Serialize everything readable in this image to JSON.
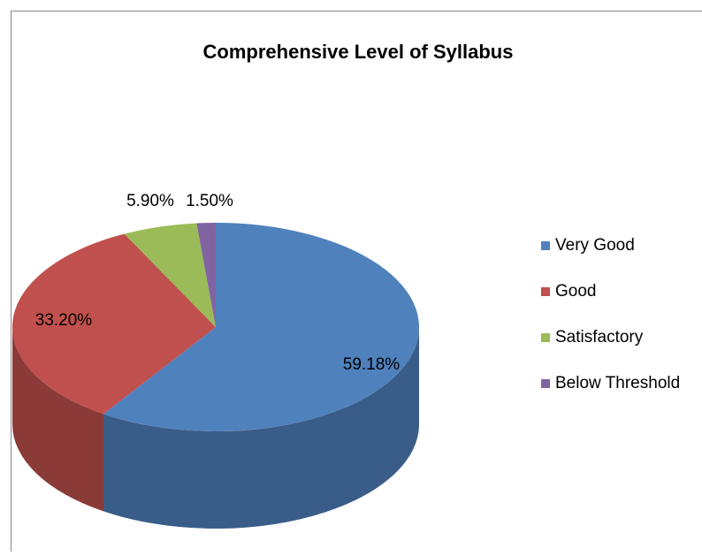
{
  "chart_data": {
    "type": "pie",
    "title": "Comprehensive Level of Syllabus",
    "categories": [
      "Very Good",
      "Good",
      "Satisfactory",
      "Below Threshold"
    ],
    "values": [
      59.18,
      33.2,
      5.9,
      1.5
    ],
    "value_labels": [
      "59.18%",
      "33.20%",
      "5.90%",
      "1.50%"
    ],
    "colors": [
      "#4f81bd",
      "#c0504d",
      "#9bbb59",
      "#8064a2"
    ],
    "legend": "right"
  }
}
